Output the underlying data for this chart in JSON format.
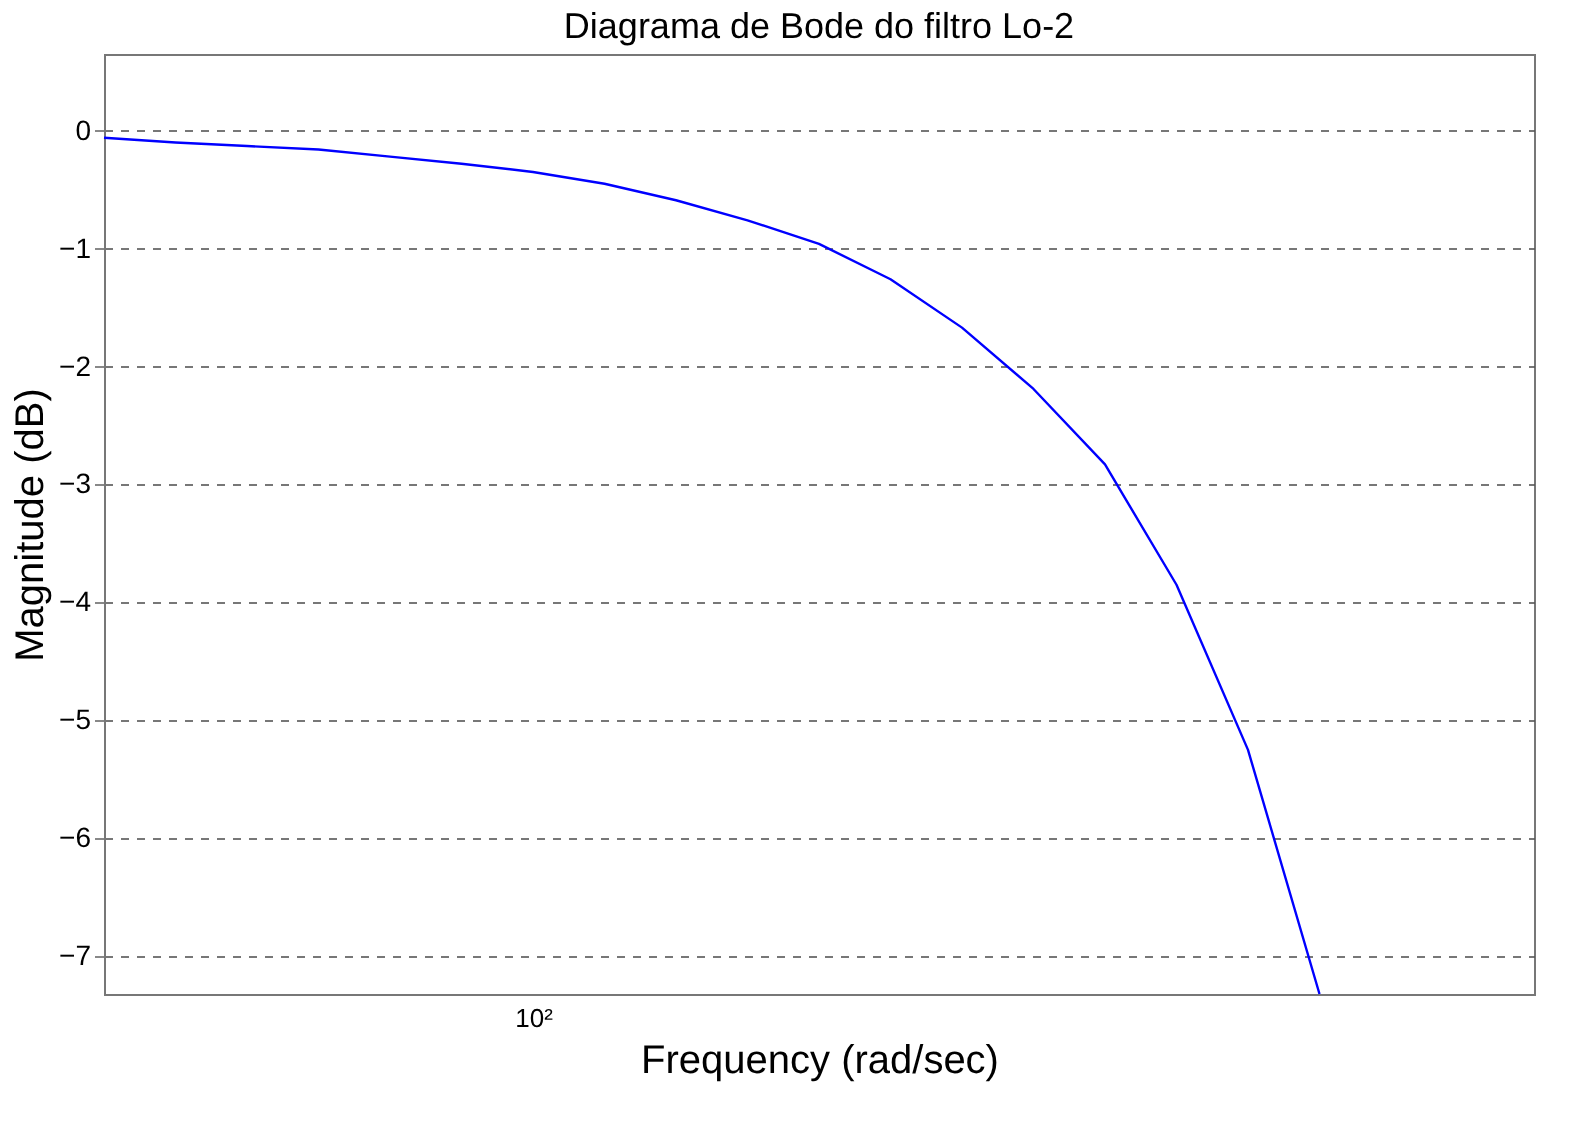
{
  "chart_data": {
    "type": "line",
    "title": "Diagrama de Bode do filtro Lo-2",
    "xlabel": "Frequency (rad/sec)",
    "ylabel": "Magnitude (dB)",
    "grid": "y",
    "categories": [
      null,
      null,
      null,
      null,
      null,
      null,
      "10²",
      null,
      null,
      null,
      null,
      null,
      null,
      null,
      null,
      null,
      null,
      null,
      null,
      null,
      null
    ],
    "series": [
      {
        "color": "#0000ff",
        "values": [
          -0.06,
          -0.1,
          -0.13,
          -0.16,
          -0.22,
          -0.28,
          -0.35,
          -0.45,
          -0.59,
          -0.76,
          -0.96,
          -1.26,
          -1.67,
          -2.19,
          -2.83,
          -3.85,
          -5.25,
          -7.32,
          null,
          null,
          null
        ]
      }
    ],
    "ylim": [
      -7.32,
      0.65
    ],
    "yticks": [
      -7,
      -6,
      -5,
      -4,
      -3,
      -2,
      -1,
      0
    ]
  }
}
